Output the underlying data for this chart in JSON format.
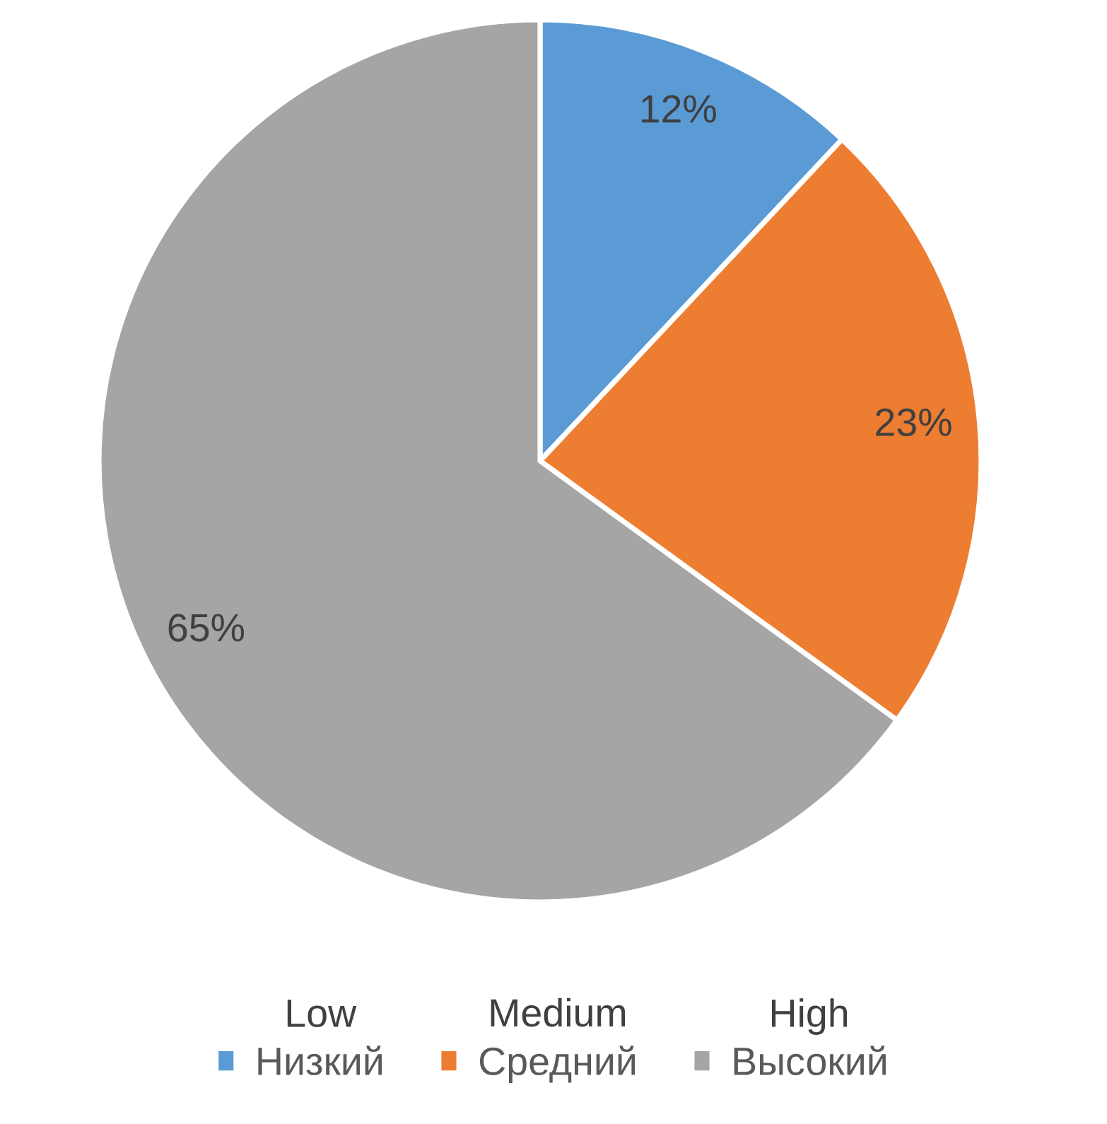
{
  "chart_data": {
    "type": "pie",
    "categories": [
      "Низкий",
      "Средний",
      "Высокий"
    ],
    "values": [
      12,
      23,
      65
    ],
    "colors": [
      "#5b9bd5",
      "#ed7d31",
      "#a5a5a5"
    ],
    "value_labels": [
      "12%",
      "23%",
      "65%"
    ],
    "legend": "bottom",
    "annotations": [
      "Low",
      "Medium",
      "High"
    ]
  }
}
